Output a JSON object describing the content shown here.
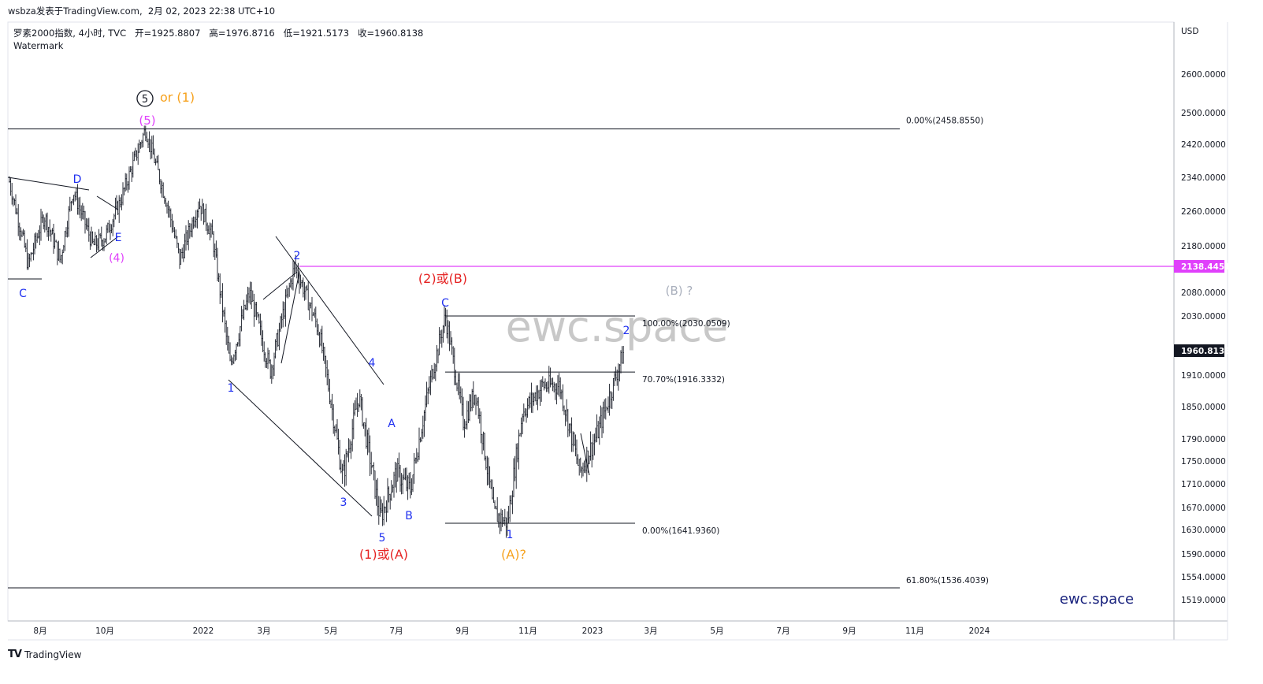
{
  "header": {
    "publisher": "wsbza发表于TradingView.com",
    "timestamp": "2月 02, 2023 22:38 UTC+10"
  },
  "legend": {
    "symbol": "罗素2000指数, 4小时, TVC",
    "open_label": "开",
    "open": "=1925.8807",
    "high_label": "高",
    "high": "=1976.8716",
    "low_label": "低",
    "low": "=1921.5173",
    "close_label": "收",
    "close": "=1960.8138",
    "watermark": "Watermark"
  },
  "footer": {
    "brand": "TradingView",
    "logo": "TV"
  },
  "colors": {
    "candles": "#131722",
    "magenta": "#e040fb",
    "wave_blue": "#1e2ff0",
    "wave_red": "#e52222",
    "wave_orange": "#f6a21e",
    "wave_gray": "#aab0bd",
    "price_badge": "#131722",
    "magenta_badge": "#e040fb"
  },
  "chart_data": {
    "type": "candlestick",
    "interval": "4小时",
    "currency": "USD",
    "y_ticks": [
      "2600.0000",
      "2500.0000",
      "2420.0000",
      "2340.0000",
      "2260.0000",
      "2180.0000",
      "2080.0000",
      "2030.0000",
      "1910.0000",
      "1850.0000",
      "1790.0000",
      "1750.0000",
      "1710.0000",
      "1670.0000",
      "1630.0000",
      "1590.0000",
      "1554.0000",
      "1519.0000"
    ],
    "x_ticks": [
      "8月",
      "10月",
      "2022",
      "3月",
      "5月",
      "7月",
      "9月",
      "11月",
      "2023",
      "3月",
      "5月",
      "7月",
      "9月",
      "11月",
      "2024"
    ],
    "last_price": "1960.8138",
    "marker_price": "2138.4451",
    "price_path": [
      {
        "date": "2021-07-01",
        "close": 2330
      },
      {
        "date": "2021-07-20",
        "close": 2140
      },
      {
        "date": "2021-08-05",
        "close": 2250
      },
      {
        "date": "2021-08-20",
        "close": 2150
      },
      {
        "date": "2021-09-01",
        "close": 2310
      },
      {
        "date": "2021-09-20",
        "close": 2180
      },
      {
        "date": "2021-10-01",
        "close": 2200
      },
      {
        "date": "2021-10-15",
        "close": 2280
      },
      {
        "date": "2021-11-08",
        "close": 2458
      },
      {
        "date": "2021-11-30",
        "close": 2260
      },
      {
        "date": "2021-12-10",
        "close": 2150
      },
      {
        "date": "2021-12-28",
        "close": 2280
      },
      {
        "date": "2022-01-10",
        "close": 2200
      },
      {
        "date": "2022-01-27",
        "close": 1930
      },
      {
        "date": "2022-02-15",
        "close": 2080
      },
      {
        "date": "2022-03-07",
        "close": 1920
      },
      {
        "date": "2022-03-29",
        "close": 2140
      },
      {
        "date": "2022-04-20",
        "close": 2000
      },
      {
        "date": "2022-05-12",
        "close": 1720
      },
      {
        "date": "2022-05-27",
        "close": 1870
      },
      {
        "date": "2022-06-16",
        "close": 1650
      },
      {
        "date": "2022-07-01",
        "close": 1730
      },
      {
        "date": "2022-07-14",
        "close": 1700
      },
      {
        "date": "2022-08-01",
        "close": 1890
      },
      {
        "date": "2022-08-16",
        "close": 2030
      },
      {
        "date": "2022-09-02",
        "close": 1820
      },
      {
        "date": "2022-09-13",
        "close": 1880
      },
      {
        "date": "2022-09-30",
        "close": 1660
      },
      {
        "date": "2022-10-13",
        "close": 1642
      },
      {
        "date": "2022-10-27",
        "close": 1840
      },
      {
        "date": "2022-11-15",
        "close": 1890
      },
      {
        "date": "2022-12-01",
        "close": 1890
      },
      {
        "date": "2022-12-20",
        "close": 1730
      },
      {
        "date": "2023-01-06",
        "close": 1800
      },
      {
        "date": "2023-01-20",
        "close": 1880
      },
      {
        "date": "2023-02-02",
        "close": 1960
      }
    ],
    "fib_levels": [
      {
        "label": "0.00%(2458.8550)",
        "price": 2458.855
      },
      {
        "label": "100.00%(2030.0509)",
        "price": 2030.0509
      },
      {
        "label": "70.70%(1916.3332)",
        "price": 1916.3332
      },
      {
        "label": "0.00%(1641.9360)",
        "price": 1641.936
      },
      {
        "label": "61.80%(1536.4039)",
        "price": 1536.4039
      }
    ],
    "wave_labels": [
      {
        "text": "(5)",
        "color": "magenta"
      },
      {
        "text": "or (1)",
        "color": "orange"
      },
      {
        "text": "D",
        "color": "blue"
      },
      {
        "text": "E",
        "color": "blue"
      },
      {
        "text": "(4)",
        "color": "magenta"
      },
      {
        "text": "C",
        "color": "blue"
      },
      {
        "text": "2",
        "color": "blue"
      },
      {
        "text": "1",
        "color": "blue"
      },
      {
        "text": "4",
        "color": "blue"
      },
      {
        "text": "3",
        "color": "blue"
      },
      {
        "text": "5",
        "color": "blue"
      },
      {
        "text": "A",
        "color": "blue"
      },
      {
        "text": "B",
        "color": "blue"
      },
      {
        "text": "(1)或(A)",
        "color": "red"
      },
      {
        "text": "(2)或(B)",
        "color": "red"
      },
      {
        "text": "C",
        "color": "blue"
      },
      {
        "text": "1",
        "color": "blue"
      },
      {
        "text": "(A)?",
        "color": "orange"
      },
      {
        "text": "2",
        "color": "blue"
      },
      {
        "text": "(B) ?",
        "color": "gray"
      }
    ],
    "circled_label": "5",
    "watermark_big": "ewc.space",
    "watermark_small": "ewc.space"
  }
}
